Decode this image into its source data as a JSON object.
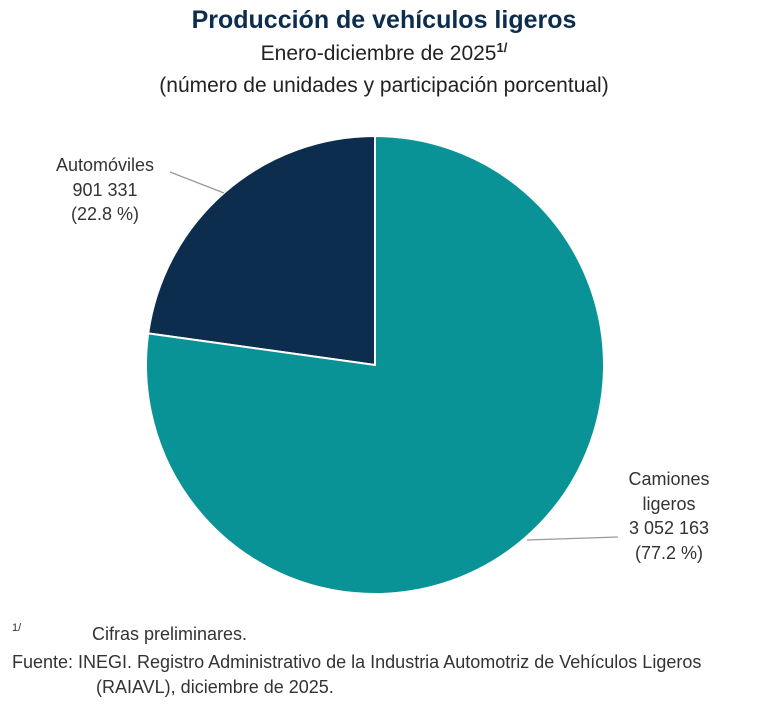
{
  "chart_data": {
    "type": "pie",
    "title": "Producción de vehículos ligeros",
    "subtitle": "Enero-diciembre de 2025",
    "subtitle_note": "1/",
    "description": "(número de unidades y participación porcentual)",
    "categories": [
      "Camiones ligeros",
      "Automóviles"
    ],
    "values": [
      3052163,
      901331
    ],
    "value_labels": [
      "3 052 163",
      "901 331"
    ],
    "percent_labels": [
      "(77.2 %)",
      "(22.8 %)"
    ],
    "colors": [
      "#0a9396",
      "#0c2d4e"
    ]
  },
  "footnotes": {
    "marker": "1/",
    "note": "Cifras preliminares.",
    "source": "Fuente: INEGI. Registro Administrativo de la Industria Automotriz de Vehículos Ligeros (RAIAVL), diciembre de 2025."
  }
}
